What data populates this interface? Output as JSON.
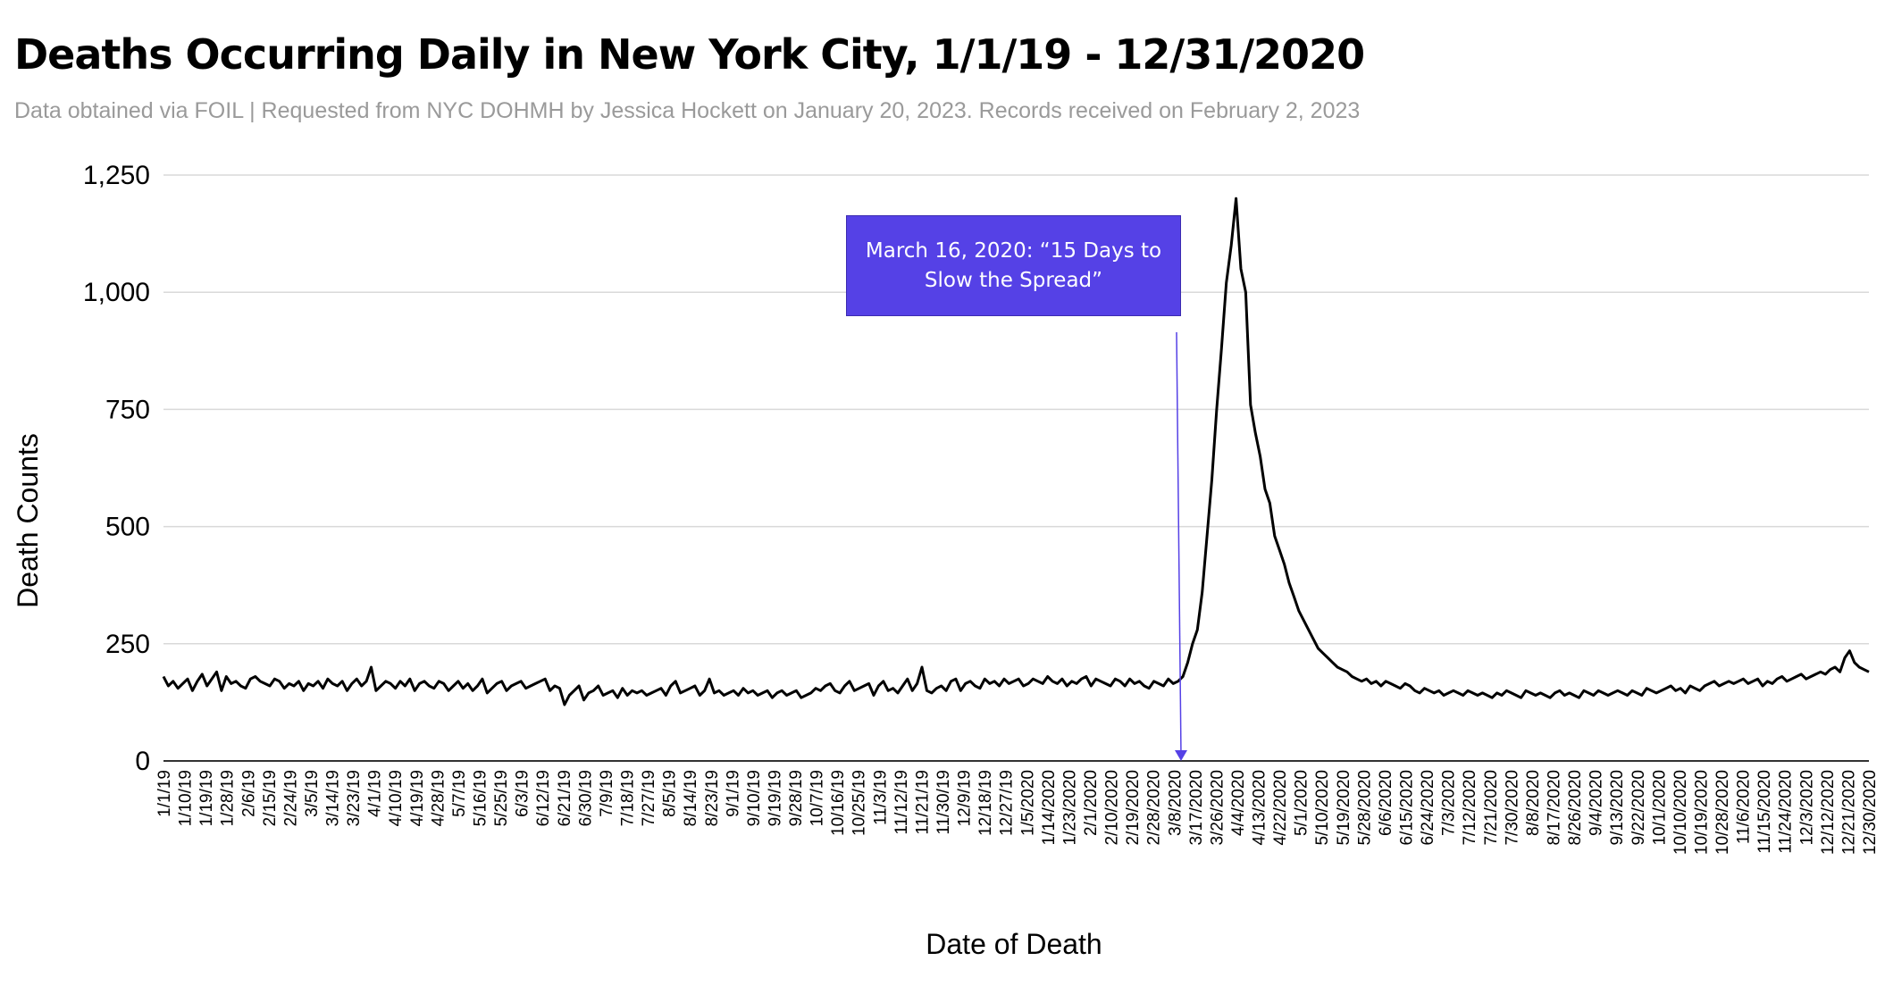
{
  "title": "Deaths Occurring Daily in New York City, 1/1/19 - 12/31/2020",
  "subtitle": "Data obtained via FOIL | Requested from NYC DOHMH by Jessica Hockett on January 20, 2023. Records received on February 2, 2023",
  "annotation": {
    "text": "March 16, 2020: “15 Days to Slow the Spread”",
    "date": "3/16/2020",
    "color": "#5541e6"
  },
  "colors": {
    "line": "#000000",
    "grid": "#d9d9d9",
    "axis": "#333333",
    "subtitle": "#9a9a9a"
  },
  "chart_data": {
    "type": "line",
    "title": "Deaths Occurring Daily in New York City, 1/1/19 - 12/31/2020",
    "xlabel": "Date of Death",
    "ylabel": "Death Counts",
    "x_start": "1/1/19",
    "x_end": "12/31/2020",
    "ylim": [
      0,
      1250
    ],
    "yticks": [
      "0",
      "250",
      "500",
      "750",
      "1,000",
      "1,250"
    ],
    "grid": true,
    "legend": "none",
    "x_tick_labels": [
      "1/1/19",
      "1/10/19",
      "1/19/19",
      "1/28/19",
      "2/6/19",
      "2/15/19",
      "2/24/19",
      "3/5/19",
      "3/14/19",
      "3/23/19",
      "4/1/19",
      "4/10/19",
      "4/19/19",
      "4/28/19",
      "5/7/19",
      "5/16/19",
      "5/25/19",
      "6/3/19",
      "6/12/19",
      "6/21/19",
      "6/30/19",
      "7/9/19",
      "7/18/19",
      "7/27/19",
      "8/5/19",
      "8/14/19",
      "8/23/19",
      "9/1/19",
      "9/10/19",
      "9/19/19",
      "9/28/19",
      "10/7/19",
      "10/16/19",
      "10/25/19",
      "11/3/19",
      "11/12/19",
      "11/21/19",
      "11/30/19",
      "12/9/19",
      "12/18/19",
      "12/27/19",
      "1/5/2020",
      "1/14/2020",
      "1/23/2020",
      "2/1/2020",
      "2/10/2020",
      "2/19/2020",
      "2/28/2020",
      "3/8/2020",
      "3/17/2020",
      "3/26/2020",
      "4/4/2020",
      "4/13/2020",
      "4/22/2020",
      "5/1/2020",
      "5/10/2020",
      "5/19/2020",
      "5/28/2020",
      "6/6/2020",
      "6/15/2020",
      "6/24/2020",
      "7/3/2020",
      "7/12/2020",
      "7/21/2020",
      "7/30/2020",
      "8/8/2020",
      "8/17/2020",
      "8/26/2020",
      "9/4/2020",
      "9/13/2020",
      "9/22/2020",
      "10/1/2020",
      "10/10/2020",
      "10/19/2020",
      "10/28/2020",
      "11/6/2020",
      "11/15/2020",
      "11/24/2020",
      "12/3/2020",
      "12/12/2020",
      "12/21/2020",
      "12/30/2020"
    ],
    "series": [
      {
        "values": [
          180,
          160,
          170,
          155,
          165,
          175,
          150,
          170,
          185,
          160,
          175,
          190,
          150,
          180,
          165,
          170,
          160,
          155,
          175,
          180,
          170,
          165,
          160,
          175,
          170,
          155,
          165,
          160,
          170,
          150,
          165,
          160,
          170,
          155,
          175,
          165,
          160,
          170,
          150,
          165,
          175,
          160,
          170,
          200,
          150,
          160,
          170,
          165,
          155,
          170,
          160,
          175,
          150,
          165,
          170,
          160,
          155,
          170,
          165,
          150,
          160,
          170,
          155,
          165,
          150,
          160,
          175,
          145,
          155,
          165,
          170,
          150,
          160,
          165,
          170,
          155,
          160,
          165,
          170,
          175,
          150,
          160,
          155,
          120,
          140,
          150,
          160,
          130,
          145,
          150,
          160,
          140,
          145,
          150,
          135,
          155,
          140,
          150,
          145,
          150,
          140,
          145,
          150,
          155,
          140,
          160,
          170,
          145,
          150,
          155,
          160,
          140,
          150,
          175,
          145,
          150,
          140,
          145,
          150,
          140,
          155,
          145,
          150,
          140,
          145,
          150,
          135,
          145,
          150,
          140,
          145,
          150,
          135,
          140,
          145,
          155,
          150,
          160,
          165,
          150,
          145,
          160,
          170,
          150,
          155,
          160,
          165,
          140,
          160,
          170,
          150,
          155,
          145,
          160,
          175,
          150,
          165,
          200,
          150,
          145,
          155,
          160,
          150,
          170,
          175,
          150,
          165,
          170,
          160,
          155,
          175,
          165,
          170,
          160,
          175,
          165,
          170,
          175,
          160,
          165,
          175,
          170,
          165,
          180,
          170,
          165,
          175,
          160,
          170,
          165,
          175,
          180,
          160,
          175,
          170,
          165,
          160,
          175,
          170,
          160,
          175,
          165,
          170,
          160,
          155,
          170,
          165,
          160,
          175,
          165,
          170,
          180,
          210,
          250,
          280,
          360,
          480,
          600,
          750,
          880,
          1020,
          1100,
          1200,
          1050,
          1000,
          760,
          700,
          650,
          580,
          550,
          480,
          450,
          420,
          380,
          350,
          320,
          300,
          280,
          260,
          240,
          230,
          220,
          210,
          200,
          195,
          190,
          180,
          175,
          170,
          175,
          165,
          170,
          160,
          170,
          165,
          160,
          155,
          165,
          160,
          150,
          145,
          155,
          150,
          145,
          150,
          140,
          145,
          150,
          145,
          140,
          150,
          145,
          140,
          145,
          140,
          135,
          145,
          140,
          150,
          145,
          140,
          135,
          150,
          145,
          140,
          145,
          140,
          135,
          145,
          150,
          140,
          145,
          140,
          135,
          150,
          145,
          140,
          150,
          145,
          140,
          145,
          150,
          145,
          140,
          150,
          145,
          140,
          155,
          150,
          145,
          150,
          155,
          160,
          150,
          155,
          145,
          160,
          155,
          150,
          160,
          165,
          170,
          160,
          165,
          170,
          165,
          170,
          175,
          165,
          170,
          175,
          160,
          170,
          165,
          175,
          180,
          170,
          175,
          180,
          185,
          175,
          180,
          185,
          190,
          185,
          195,
          200,
          190,
          220,
          235,
          210,
          200,
          195,
          190
        ]
      }
    ]
  }
}
